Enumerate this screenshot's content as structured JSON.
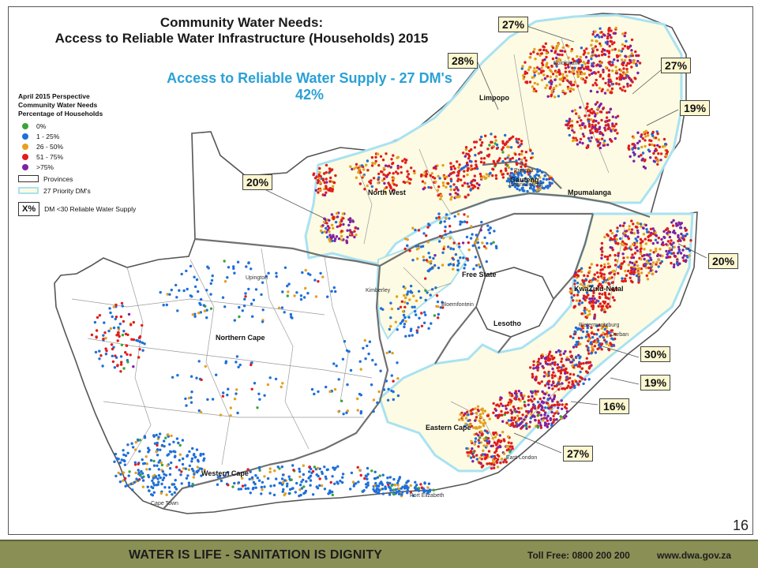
{
  "title": {
    "line1": "Community Water Needs:",
    "line2": "Access to Reliable Water Infrastructure (Households) 2015"
  },
  "subtitle": {
    "line1": "Access to Reliable Water Supply - 27 DM's",
    "line2": "42%"
  },
  "legend": {
    "heading_lines": [
      "April 2015 Perspective",
      "Community Water Needs",
      "Percentage of Households"
    ],
    "classes": [
      {
        "label": "0%",
        "color": "#3aa535"
      },
      {
        "label": "1 - 25%",
        "color": "#1e6fd9"
      },
      {
        "label": "26 - 50%",
        "color": "#e3a11d"
      },
      {
        "label": "51 - 75%",
        "color": "#e11c1c"
      },
      {
        "label": ">75%",
        "color": "#7b22a8"
      }
    ],
    "provinces_label": "Provinces",
    "priority_label": "27 Priority DM's",
    "x_box": "X%",
    "x_label": "DM <30 Reliable Water Supply"
  },
  "callouts": [
    {
      "id": "c1",
      "value": "27%"
    },
    {
      "id": "c2",
      "value": "28%"
    },
    {
      "id": "c3",
      "value": "27%"
    },
    {
      "id": "c4",
      "value": "19%"
    },
    {
      "id": "c5",
      "value": "20%"
    },
    {
      "id": "c6",
      "value": "20%"
    },
    {
      "id": "c7",
      "value": "30%"
    },
    {
      "id": "c8",
      "value": "19%"
    },
    {
      "id": "c9",
      "value": "16%"
    },
    {
      "id": "c10",
      "value": "27%"
    }
  ],
  "provinces": {
    "limpopo": "Limpopo",
    "north_west": "North West",
    "gauteng": "Gauteng",
    "mpumalanga": "Mpumalanga",
    "free_state": "Free State",
    "lesotho": "Lesotho",
    "kwazulu_natal": "KwaZulu-Natal",
    "northern_cape": "Northern Cape",
    "eastern_cape": "Eastern Cape",
    "western_cape": "Western Cape"
  },
  "cities": {
    "upington": "Upington",
    "kimberley": "Kimberley",
    "bloemfontein": "Bloemfontein",
    "durban": "Durban",
    "pietermaritzburg": "Pietermaritzburg",
    "east_london": "East London",
    "port_elizabeth": "Port Elizabeth",
    "cape_town": "Cape Town",
    "polokwane": "Polokwane",
    "pretoria": "Pretoria",
    "johannesburg": "Johannesburg"
  },
  "page_number": "16",
  "footer": {
    "slogan": "WATER IS LIFE - SANITATION IS DIGNITY",
    "toll_free": "Toll Free: 0800 200 200",
    "url": "www.dwa.gov.za"
  },
  "colors": {
    "priority_fill": "#fdfbe3",
    "priority_border": "#a8e2f2",
    "callout_fill": "#fdf7d0",
    "subtitle": "#2aa1d6",
    "footer_bg": "#8a8f56"
  }
}
